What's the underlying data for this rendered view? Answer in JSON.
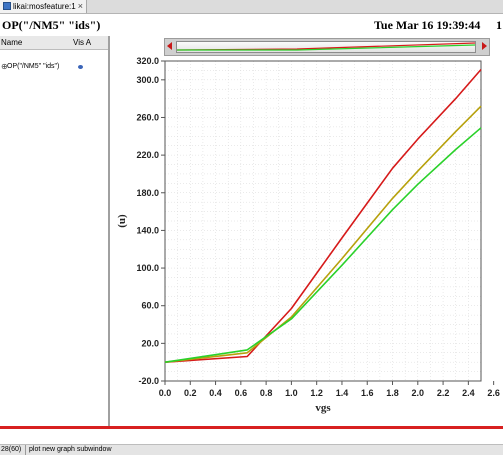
{
  "tab": {
    "label": "likai:mosfeature:1",
    "close": "×"
  },
  "header": {
    "trace_title": "OP(\"/NM5\" \"ids\")",
    "datetime": "Tue Mar 16 19:39:44",
    "edge_mark": "1"
  },
  "sidebar": {
    "col_name": "Name",
    "col_vis": "Vis A",
    "traces": [
      {
        "expand": "⊕",
        "label": "OP(\"/NM5\" \"ids\")"
      }
    ]
  },
  "status": {
    "counter": "28(60)",
    "message": "plot new graph subwindow"
  },
  "colors": {
    "red": "#d61a1a",
    "olive": "#b7a10c",
    "green": "#2ad12a",
    "grid": "#d6d6d6",
    "accent_bar": "#d82020"
  },
  "chart_data": {
    "type": "line",
    "xlabel": "vgs",
    "ylabel": "(u)",
    "xlim": [
      0.0,
      2.5
    ],
    "ylim": [
      -20.0,
      320.0
    ],
    "x_ticks": [
      "0.0",
      "0.2",
      "0.4",
      "0.6",
      "0.8",
      "1.0",
      "1.2",
      "1.4",
      "1.6",
      "1.8",
      "2.0",
      "2.2",
      "2.4",
      "2.6"
    ],
    "y_ticks": [
      "-20.0",
      "20.0",
      "60.0",
      "100.0",
      "140.0",
      "180.0",
      "220.0",
      "260.0",
      "300.0",
      "320.0"
    ],
    "y_tick_values": [
      -20,
      20,
      60,
      100,
      140,
      180,
      220,
      260,
      300,
      320
    ],
    "series": [
      {
        "color": "#d61a1a",
        "x": [
          0.0,
          0.65,
          1.0,
          1.4,
          1.8,
          2.0,
          2.3,
          2.5
        ],
        "y": [
          0,
          6,
          57,
          132,
          206,
          237,
          280,
          311
        ]
      },
      {
        "color": "#b7a10c",
        "x": [
          0.0,
          0.65,
          1.0,
          1.4,
          1.8,
          2.0,
          2.3,
          2.5
        ],
        "y": [
          0,
          10,
          48,
          110,
          174,
          203,
          245,
          272
        ]
      },
      {
        "color": "#2ad12a",
        "x": [
          0.0,
          0.65,
          1.0,
          1.4,
          1.8,
          2.0,
          2.3,
          2.5
        ],
        "y": [
          0,
          13,
          46,
          103,
          162,
          189,
          226,
          249
        ]
      }
    ]
  }
}
